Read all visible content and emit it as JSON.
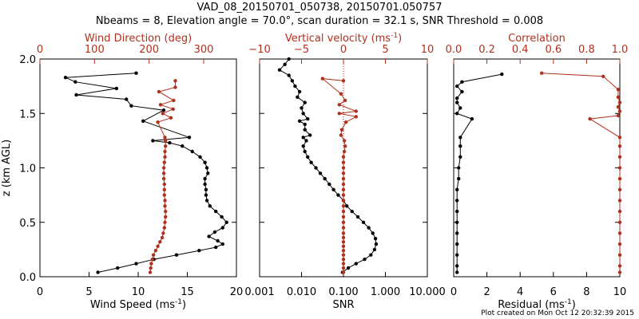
{
  "header": {
    "title_line1": "VAD_08_20150701_050738, 20150701.050757",
    "title_line2": "Nbeams = 8, Elevation angle = 70.0°, scan duration = 32.1 s, SNR Threshold = 0.008"
  },
  "footer": {
    "note": "Plot created on Mon Oct 12 20:32:39 2015"
  },
  "colors": {
    "primary": "#000000",
    "secondary": "#b0301e",
    "vline": "#d01010"
  },
  "y_axis": {
    "label": "z (km AGL)",
    "range": [
      0.0,
      2.0
    ],
    "ticks": [
      0.0,
      0.5,
      1.0,
      1.5,
      2.0
    ],
    "tick_labels": [
      "0.0",
      "0.5",
      "1.0",
      "1.5",
      "2.0"
    ]
  },
  "chart_data": [
    {
      "type": "line",
      "panel": "wind",
      "bottom_axis": {
        "label": "Wind Speed",
        "unit": "ms",
        "exp": "-1",
        "range": [
          0,
          20
        ],
        "scale": "linear",
        "ticks": [
          0,
          5,
          10,
          15,
          20
        ],
        "tick_labels": [
          "0",
          "5",
          "10",
          "15",
          "20"
        ]
      },
      "top_axis": {
        "label": "Wind Direction (deg)",
        "range": [
          0,
          360
        ],
        "ticks": [
          0,
          100,
          200,
          300
        ],
        "tick_labels": [
          "0",
          "100",
          "200",
          "300"
        ]
      },
      "series": [
        {
          "name": "Wind Speed",
          "axis": "bottom",
          "color": "#000000",
          "points": [
            [
              5.9,
              0.04
            ],
            [
              7.9,
              0.08
            ],
            [
              9.8,
              0.12
            ],
            [
              11.6,
              0.16
            ],
            [
              13.9,
              0.2
            ],
            [
              16.2,
              0.24
            ],
            [
              17.9,
              0.27
            ],
            [
              18.6,
              0.3
            ],
            [
              18.1,
              0.33
            ],
            [
              17.2,
              0.37
            ],
            [
              17.8,
              0.41
            ],
            [
              18.6,
              0.45
            ],
            [
              19.0,
              0.5
            ],
            [
              18.5,
              0.55
            ],
            [
              17.9,
              0.6
            ],
            [
              17.3,
              0.65
            ],
            [
              17.0,
              0.7
            ],
            [
              16.9,
              0.75
            ],
            [
              16.9,
              0.8
            ],
            [
              16.8,
              0.85
            ],
            [
              16.8,
              0.9
            ],
            [
              17.1,
              0.95
            ],
            [
              17.0,
              1.0
            ],
            [
              16.8,
              1.05
            ],
            [
              16.3,
              1.1
            ],
            [
              15.5,
              1.15
            ],
            [
              14.5,
              1.2
            ],
            [
              13.2,
              1.23
            ],
            [
              11.5,
              1.25
            ],
            [
              15.2,
              1.28
            ],
            [
              10.5,
              1.43
            ],
            [
              12.6,
              1.53
            ],
            [
              9.3,
              1.57
            ],
            [
              8.8,
              1.63
            ],
            [
              3.7,
              1.67
            ],
            [
              7.8,
              1.73
            ],
            [
              3.6,
              1.79
            ],
            [
              2.6,
              1.83
            ],
            [
              9.8,
              1.87
            ]
          ]
        },
        {
          "name": "Wind Direction",
          "axis": "top",
          "color": "#b0301e",
          "points": [
            [
              202,
              0.04
            ],
            [
              203,
              0.08
            ],
            [
              204,
              0.12
            ],
            [
              206,
              0.16
            ],
            [
              208,
              0.2
            ],
            [
              212,
              0.24
            ],
            [
              216,
              0.28
            ],
            [
              220,
              0.32
            ],
            [
              224,
              0.36
            ],
            [
              226,
              0.4
            ],
            [
              228,
              0.45
            ],
            [
              229,
              0.5
            ],
            [
              230,
              0.55
            ],
            [
              230,
              0.6
            ],
            [
              229,
              0.65
            ],
            [
              229,
              0.7
            ],
            [
              228,
              0.75
            ],
            [
              228,
              0.8
            ],
            [
              228,
              0.85
            ],
            [
              227,
              0.9
            ],
            [
              227,
              0.95
            ],
            [
              227,
              1.0
            ],
            [
              228,
              1.05
            ],
            [
              229,
              1.1
            ],
            [
              229,
              1.15
            ],
            [
              230,
              1.2
            ],
            [
              230,
              1.25
            ],
            [
              229,
              1.28
            ],
            [
              216,
              1.42
            ],
            [
              240,
              1.46
            ],
            [
              225,
              1.5
            ],
            [
              244,
              1.54
            ],
            [
              221,
              1.58
            ],
            [
              245,
              1.62
            ],
            [
              218,
              1.7
            ],
            [
              248,
              1.74
            ],
            [
              248,
              1.8
            ]
          ]
        }
      ]
    },
    {
      "type": "scatter",
      "panel": "snr_vvel",
      "bottom_axis": {
        "label": "SNR",
        "range": [
          0.001,
          10
        ],
        "scale": "log",
        "ticks": [
          0.001,
          0.01,
          0.1,
          1,
          10
        ],
        "tick_labels": [
          "0.001",
          "0.010",
          "0.100",
          "1.000",
          "10.000"
        ]
      },
      "top_axis": {
        "label": "Vertical velocity",
        "unit": "ms",
        "exp": "-1",
        "range": [
          -10,
          10
        ],
        "ticks": [
          -10,
          -5,
          0,
          5,
          10
        ],
        "tick_labels": [
          "−10",
          "−5",
          "0",
          "5",
          "10"
        ]
      },
      "series": [
        {
          "name": "SNR",
          "axis": "bottom",
          "color": "#000000",
          "points": [
            [
              0.095,
              0.04
            ],
            [
              0.13,
              0.08
            ],
            [
              0.2,
              0.12
            ],
            [
              0.32,
              0.16
            ],
            [
              0.45,
              0.2
            ],
            [
              0.55,
              0.25
            ],
            [
              0.6,
              0.3
            ],
            [
              0.58,
              0.35
            ],
            [
              0.5,
              0.4
            ],
            [
              0.4,
              0.45
            ],
            [
              0.3,
              0.5
            ],
            [
              0.22,
              0.55
            ],
            [
              0.16,
              0.6
            ],
            [
              0.12,
              0.65
            ],
            [
              0.1,
              0.7
            ],
            [
              0.075,
              0.75
            ],
            [
              0.058,
              0.8
            ],
            [
              0.046,
              0.85
            ],
            [
              0.036,
              0.9
            ],
            [
              0.028,
              0.95
            ],
            [
              0.022,
              1.0
            ],
            [
              0.017,
              1.05
            ],
            [
              0.014,
              1.1
            ],
            [
              0.012,
              1.15
            ],
            [
              0.011,
              1.2
            ],
            [
              0.013,
              1.25
            ],
            [
              0.011,
              1.28
            ],
            [
              0.016,
              1.3
            ],
            [
              0.012,
              1.35
            ],
            [
              0.012,
              1.4
            ],
            [
              0.009,
              1.43
            ],
            [
              0.014,
              1.45
            ],
            [
              0.011,
              1.5
            ],
            [
              0.01,
              1.55
            ],
            [
              0.012,
              1.6
            ],
            [
              0.008,
              1.65
            ],
            [
              0.009,
              1.7
            ],
            [
              0.007,
              1.75
            ],
            [
              0.006,
              1.8
            ],
            [
              0.005,
              1.85
            ],
            [
              0.003,
              1.9
            ],
            [
              0.004,
              1.95
            ],
            [
              0.005,
              2.0
            ]
          ]
        },
        {
          "name": "Vertical velocity",
          "axis": "top",
          "color": "#b0301e",
          "points": [
            [
              0.0,
              0.04
            ],
            [
              0.0,
              0.08
            ],
            [
              0.0,
              0.12
            ],
            [
              0.0,
              0.16
            ],
            [
              0.0,
              0.2
            ],
            [
              0.0,
              0.24
            ],
            [
              0.0,
              0.28
            ],
            [
              0.0,
              0.32
            ],
            [
              0.0,
              0.36
            ],
            [
              0.0,
              0.4
            ],
            [
              0.0,
              0.45
            ],
            [
              0.0,
              0.5
            ],
            [
              0.0,
              0.55
            ],
            [
              0.0,
              0.6
            ],
            [
              0.0,
              0.65
            ],
            [
              0.0,
              0.7
            ],
            [
              0.0,
              0.75
            ],
            [
              0.0,
              0.8
            ],
            [
              0.0,
              0.85
            ],
            [
              0.0,
              0.9
            ],
            [
              0.0,
              0.95
            ],
            [
              0.0,
              1.0
            ],
            [
              0.0,
              1.05
            ],
            [
              0.0,
              1.1
            ],
            [
              0.1,
              1.15
            ],
            [
              0.2,
              1.2
            ],
            [
              0.1,
              1.25
            ],
            [
              -0.3,
              1.3
            ],
            [
              -0.2,
              1.35
            ],
            [
              0.3,
              1.42
            ],
            [
              1.5,
              1.47
            ],
            [
              -0.5,
              1.5
            ],
            [
              1.5,
              1.52
            ],
            [
              -0.5,
              1.58
            ],
            [
              0.2,
              1.62
            ],
            [
              -0.3,
              1.68
            ],
            [
              -2.5,
              1.82
            ],
            [
              0.0,
              1.8
            ]
          ]
        }
      ]
    },
    {
      "type": "line",
      "panel": "correlation",
      "bottom_axis": {
        "label": "Residual",
        "unit": "ms",
        "exp": "-1",
        "range": [
          0,
          10
        ],
        "ticks": [
          0,
          2,
          4,
          6,
          8,
          10
        ],
        "tick_labels": [
          "0",
          "2",
          "4",
          "6",
          "8",
          "10"
        ]
      },
      "top_axis": {
        "label": "Correlation",
        "range": [
          0.0,
          1.0
        ],
        "ticks": [
          0.0,
          0.2,
          0.4,
          0.6,
          0.8,
          1.0
        ],
        "tick_labels": [
          "0.0",
          "0.2",
          "0.4",
          "0.6",
          "0.8",
          "1.0"
        ]
      },
      "series": [
        {
          "name": "Residual",
          "axis": "bottom",
          "color": "#000000",
          "points": [
            [
              0.2,
              0.04
            ],
            [
              0.2,
              0.1
            ],
            [
              0.2,
              0.2
            ],
            [
              0.2,
              0.3
            ],
            [
              0.2,
              0.4
            ],
            [
              0.2,
              0.5
            ],
            [
              0.2,
              0.6
            ],
            [
              0.2,
              0.7
            ],
            [
              0.2,
              0.8
            ],
            [
              0.3,
              0.9
            ],
            [
              0.3,
              1.0
            ],
            [
              0.4,
              1.1
            ],
            [
              0.4,
              1.2
            ],
            [
              0.4,
              1.28
            ],
            [
              1.1,
              1.45
            ],
            [
              0.2,
              1.5
            ],
            [
              0.4,
              1.55
            ],
            [
              0.2,
              1.6
            ],
            [
              0.2,
              1.64
            ],
            [
              0.5,
              1.7
            ],
            [
              0.2,
              1.75
            ],
            [
              0.5,
              1.79
            ],
            [
              2.9,
              1.86
            ]
          ]
        },
        {
          "name": "Correlation",
          "axis": "top",
          "color": "#b0301e",
          "points": [
            [
              1.0,
              0.04
            ],
            [
              1.0,
              0.1
            ],
            [
              1.0,
              0.2
            ],
            [
              1.0,
              0.3
            ],
            [
              1.0,
              0.4
            ],
            [
              1.0,
              0.5
            ],
            [
              1.0,
              0.6
            ],
            [
              1.0,
              0.7
            ],
            [
              1.0,
              0.8
            ],
            [
              1.0,
              0.9
            ],
            [
              1.0,
              1.0
            ],
            [
              1.0,
              1.1
            ],
            [
              1.0,
              1.2
            ],
            [
              1.0,
              1.28
            ],
            [
              0.82,
              1.45
            ],
            [
              0.99,
              1.48
            ],
            [
              1.0,
              1.52
            ],
            [
              0.99,
              1.56
            ],
            [
              1.0,
              1.6
            ],
            [
              0.99,
              1.65
            ],
            [
              0.99,
              1.72
            ],
            [
              0.9,
              1.84
            ],
            [
              0.53,
              1.87
            ]
          ]
        }
      ]
    }
  ]
}
